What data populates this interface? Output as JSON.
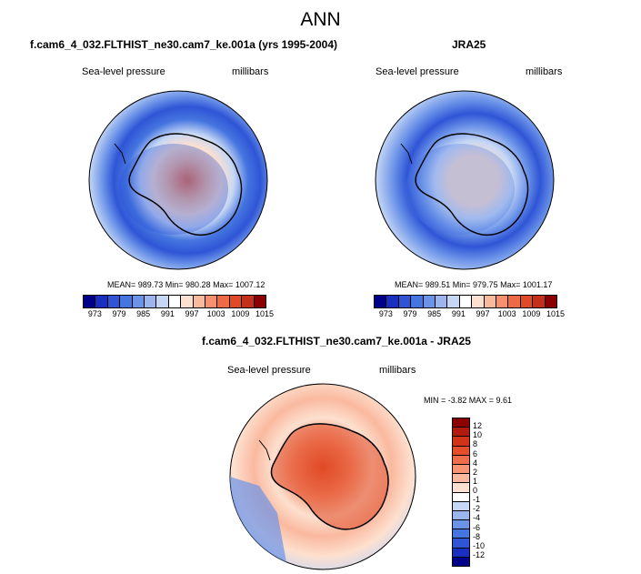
{
  "figure": {
    "title": "ANN"
  },
  "panels": [
    {
      "title": "f.cam6_4_032.FLTHIST_ne30.cam7_ke.001a (yrs 1995-2004)",
      "variable": "Sea-level pressure",
      "units": "millibars",
      "stats": "MEAN= 989.73  Min= 980.28  Max= 1007.12"
    },
    {
      "title": "JRA25",
      "variable": "Sea-level pressure",
      "units": "millibars",
      "stats": "MEAN= 989.51  Min= 979.75  Max= 1001.17"
    },
    {
      "title": "f.cam6_4_032.FLTHIST_ne30.cam7_ke.001a - JRA25",
      "variable": "Sea-level pressure",
      "units": "millibars",
      "stats": "MIN =  -3.82  MAX =   9.61"
    }
  ],
  "colorbar_abs": {
    "labels": [
      "973",
      "979",
      "985",
      "991",
      "997",
      "1003",
      "1009",
      "1015"
    ],
    "colors": [
      "#00008b",
      "#1a2fc0",
      "#2f55d6",
      "#4575e0",
      "#6b93e8",
      "#9bb5ef",
      "#c6d7f5",
      "#ffffff",
      "#fde0cf",
      "#f9b99a",
      "#f59070",
      "#ee6a45",
      "#e04a26",
      "#c4301a",
      "#8b0000"
    ]
  },
  "colorbar_diff": {
    "labels": [
      "12",
      "10",
      "8",
      "6",
      "4",
      "2",
      "1",
      "0",
      "-1",
      "-2",
      "-4",
      "-6",
      "-8",
      "-10",
      "-12"
    ],
    "colors": [
      "#8b0000",
      "#b01a0f",
      "#d03319",
      "#e54d2b",
      "#f06d4a",
      "#f69474",
      "#fab99f",
      "#fde0cf",
      "#ffffff",
      "#c6d7f5",
      "#9bb5ef",
      "#6b93e8",
      "#4575e0",
      "#2f55d6",
      "#1a2fc0",
      "#00008b"
    ]
  },
  "colors": {
    "antarctica_outline": "#000000"
  }
}
